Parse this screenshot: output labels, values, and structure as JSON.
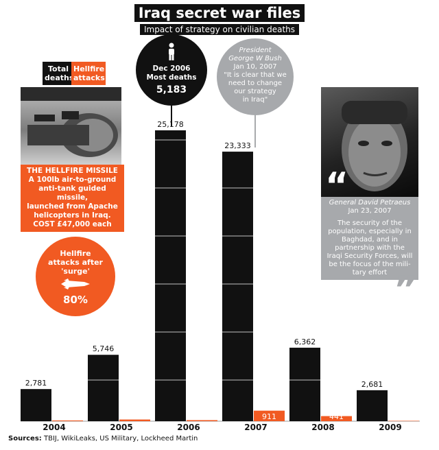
{
  "header": {
    "title": "Iraq secret war files",
    "subtitle": "Impact of strategy on civilian deaths"
  },
  "legend": {
    "total_label": "Total deaths",
    "hellfire_label": "Hellfire attacks",
    "total_color": "#111111",
    "hellfire_color": "#f15a22"
  },
  "chart_data": {
    "type": "bar",
    "categories": [
      "2004",
      "2005",
      "2006",
      "2007",
      "2008",
      "2009"
    ],
    "series": [
      {
        "name": "Total deaths",
        "values": [
          2781,
          5746,
          25178,
          23333,
          6362,
          2681
        ],
        "color": "#111111"
      },
      {
        "name": "Hellfire attacks",
        "values": [
          64,
          145,
          91,
          911,
          441,
          32
        ],
        "color": "#f15a22"
      }
    ],
    "title": "Iraq secret war files",
    "subtitle": "Impact of strategy on civilian deaths",
    "xlabel": "",
    "ylabel": "",
    "grid": true,
    "legend_position": "top-left"
  },
  "missile": {
    "photo_icon": "hellfire-missile-photo",
    "heading": "THE HELLFIRE MISSILE",
    "lines": [
      "A 100lb air-to-ground",
      "anti-tank guided missile,",
      "launched from Apache",
      "helicopters in Iraq.",
      "COST £47,000 each"
    ]
  },
  "hellfire_circle": {
    "lines": [
      "Hellfire",
      "attacks after",
      "'surge'"
    ],
    "icon": "missile-icon",
    "value": "80%"
  },
  "dec_circle": {
    "icon": "person-icon",
    "lines": [
      "Dec 2006",
      "Most deaths"
    ],
    "value": "5,183"
  },
  "bush": {
    "title": "President",
    "name": "George W Bush",
    "date": "Jan 10, 2007",
    "quote": [
      "\"It is clear that we",
      "need to change",
      "our strategy",
      "in Iraq\""
    ]
  },
  "petraeus": {
    "photo_icon": "petraeus-portrait",
    "name": "General David Petraeus",
    "date": "Jan 23, 2007",
    "quote": [
      "The security of the",
      "population, especially in",
      "Baghdad, and in",
      "partnership with the",
      "Iraqi Security Forces, will",
      "be the focus of the mili-",
      "tary effort"
    ],
    "open_quote_icon": "open-quote-icon",
    "close_quote_icon": "close-quote-icon"
  },
  "sources": {
    "label": "Sources:",
    "text": "TBIJ, WikiLeaks, US Military, Lockheed Martin"
  }
}
